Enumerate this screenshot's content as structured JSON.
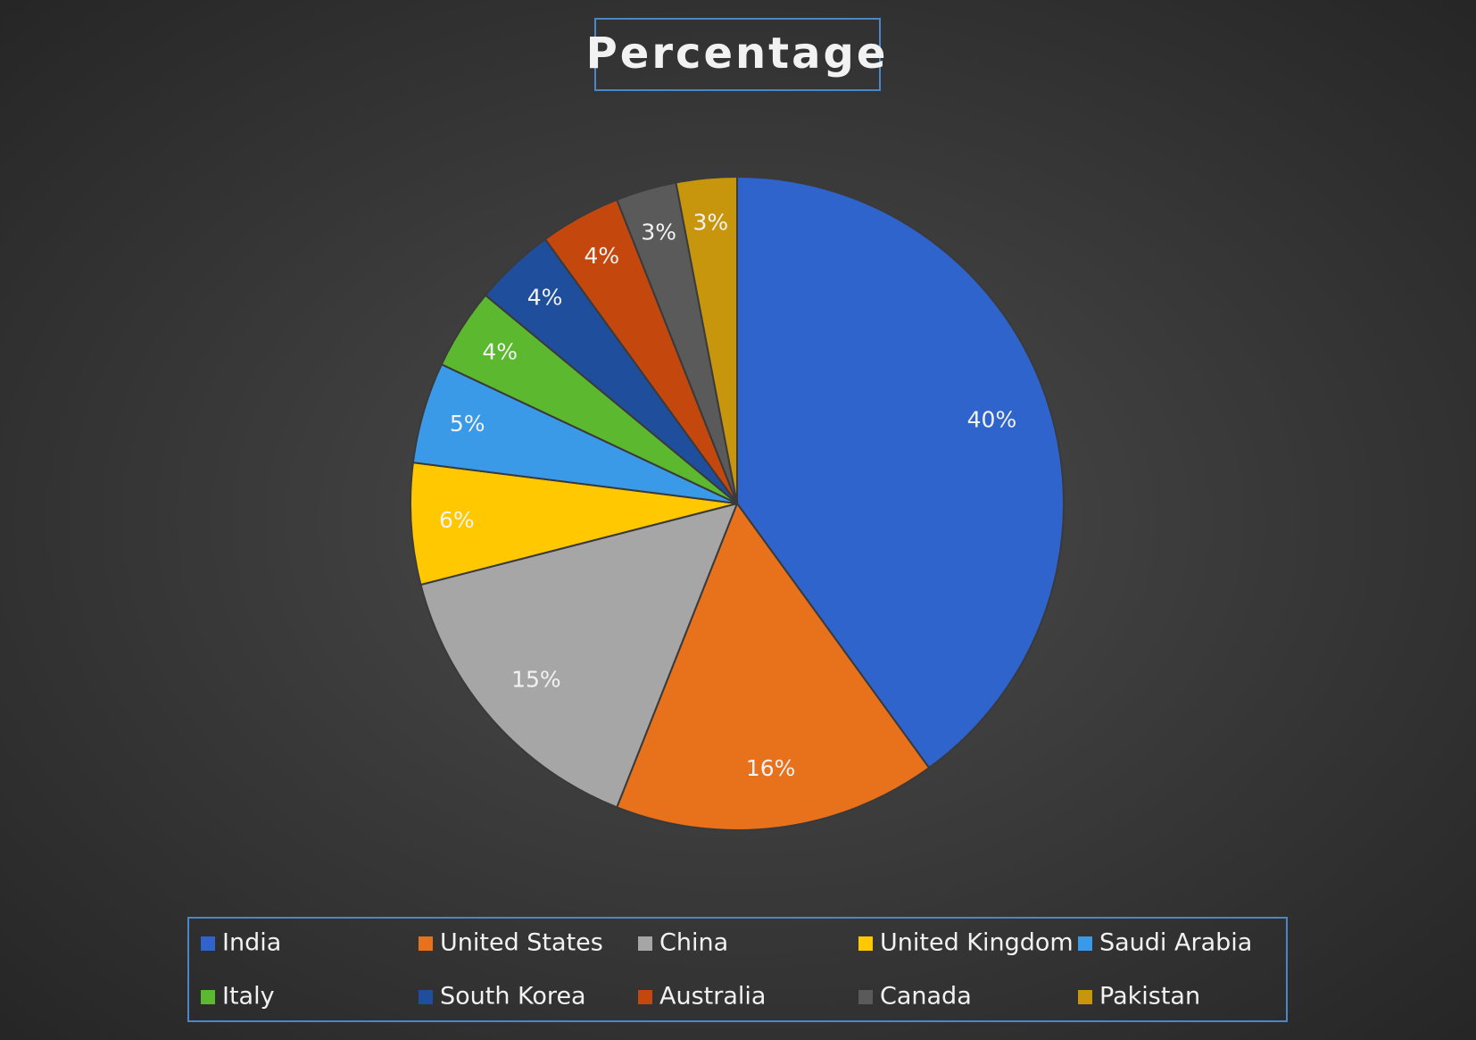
{
  "chart_data": {
    "type": "pie",
    "title": "Percentage",
    "categories": [
      "India",
      "United States",
      "China",
      "United Kingdom",
      "Saudi Arabia",
      "Italy",
      "South Korea",
      "Australia",
      "Canada",
      "Pakistan"
    ],
    "values": [
      40,
      16,
      15,
      6,
      5,
      4,
      4,
      4,
      3,
      3
    ],
    "value_labels": [
      "40%",
      "16%",
      "15%",
      "6%",
      "5%",
      "4%",
      "4%",
      "4%",
      "3%",
      "3%"
    ],
    "colors": [
      "#2f64cc",
      "#e8711c",
      "#a6a6a6",
      "#ffc800",
      "#3a9ae8",
      "#5cb82e",
      "#1f4e9c",
      "#c4480e",
      "#5a5a5a",
      "#c8960c"
    ],
    "legend": "bottom"
  }
}
